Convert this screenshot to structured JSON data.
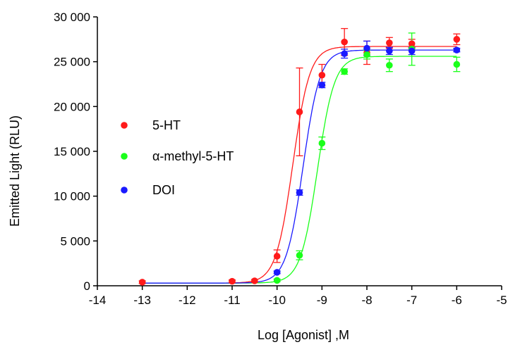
{
  "chart_data": {
    "type": "scatter",
    "xlabel": "Log [Agonist] ,M",
    "ylabel": "Emitted Light (RLU)",
    "xlim": [
      -14,
      -5
    ],
    "ylim": [
      0,
      30000
    ],
    "x_ticks": [
      -14,
      -13,
      -12,
      -11,
      -10,
      -9,
      -8,
      -7,
      -6,
      -5
    ],
    "x_tick_labels": [
      "-14",
      "-13",
      "-12",
      "-11",
      "-10",
      "-9",
      "-8",
      "-7",
      "-6",
      "-5"
    ],
    "y_ticks": [
      0,
      5000,
      10000,
      15000,
      20000,
      25000,
      30000
    ],
    "y_tick_labels": [
      "0",
      "5 000",
      "10 000",
      "15 000",
      "20 000",
      "25 000",
      "30 000"
    ],
    "grid": false,
    "legend_position": "left-middle",
    "series": [
      {
        "name": "5-HT",
        "color": "#ff1a1a",
        "points": [
          {
            "x": -13,
            "y": 400,
            "err": 150
          },
          {
            "x": -11,
            "y": 500,
            "err": 150
          },
          {
            "x": -10.5,
            "y": 550,
            "err": 150
          },
          {
            "x": -10,
            "y": 3300,
            "err": 700
          },
          {
            "x": -9.5,
            "y": 19400,
            "err": 4900
          },
          {
            "x": -9,
            "y": 23500,
            "err": 1200
          },
          {
            "x": -8.5,
            "y": 27200,
            "err": 1500
          },
          {
            "x": -8,
            "y": 26000,
            "err": 1300
          },
          {
            "x": -7.5,
            "y": 27100,
            "err": 600
          },
          {
            "x": -7,
            "y": 27000,
            "err": 500
          },
          {
            "x": -6,
            "y": 27500,
            "err": 600
          }
        ],
        "fit": {
          "bottom": 300,
          "top": 26700,
          "logEC50": -9.65,
          "hill": 2.3
        }
      },
      {
        "name": "α-methyl-5-HT",
        "color": "#1aff1a",
        "points": [
          {
            "x": -10,
            "y": 600,
            "err": 150
          },
          {
            "x": -9.5,
            "y": 3400,
            "err": 500
          },
          {
            "x": -9,
            "y": 15900,
            "err": 700
          },
          {
            "x": -8.5,
            "y": 23900,
            "err": 300
          },
          {
            "x": -8,
            "y": 25800,
            "err": 500
          },
          {
            "x": -7.5,
            "y": 24600,
            "err": 700
          },
          {
            "x": -7,
            "y": 26400,
            "err": 1800
          },
          {
            "x": -6,
            "y": 24700,
            "err": 800
          }
        ],
        "fit": {
          "bottom": 300,
          "top": 25600,
          "logEC50": -9.1,
          "hill": 2.3
        }
      },
      {
        "name": "DOI",
        "color": "#1a1aff",
        "points": [
          {
            "x": -10,
            "y": 1500,
            "err": 150
          },
          {
            "x": -9.5,
            "y": 10400,
            "err": 300
          },
          {
            "x": -9,
            "y": 22400,
            "err": 300
          },
          {
            "x": -8.5,
            "y": 25900,
            "err": 500
          },
          {
            "x": -8,
            "y": 26500,
            "err": 800
          },
          {
            "x": -7.5,
            "y": 26200,
            "err": 400
          },
          {
            "x": -7,
            "y": 26200,
            "err": 400
          },
          {
            "x": -6,
            "y": 26300,
            "err": 200
          }
        ],
        "fit": {
          "bottom": 300,
          "top": 26300,
          "logEC50": -9.42,
          "hill": 2.3
        }
      }
    ]
  }
}
